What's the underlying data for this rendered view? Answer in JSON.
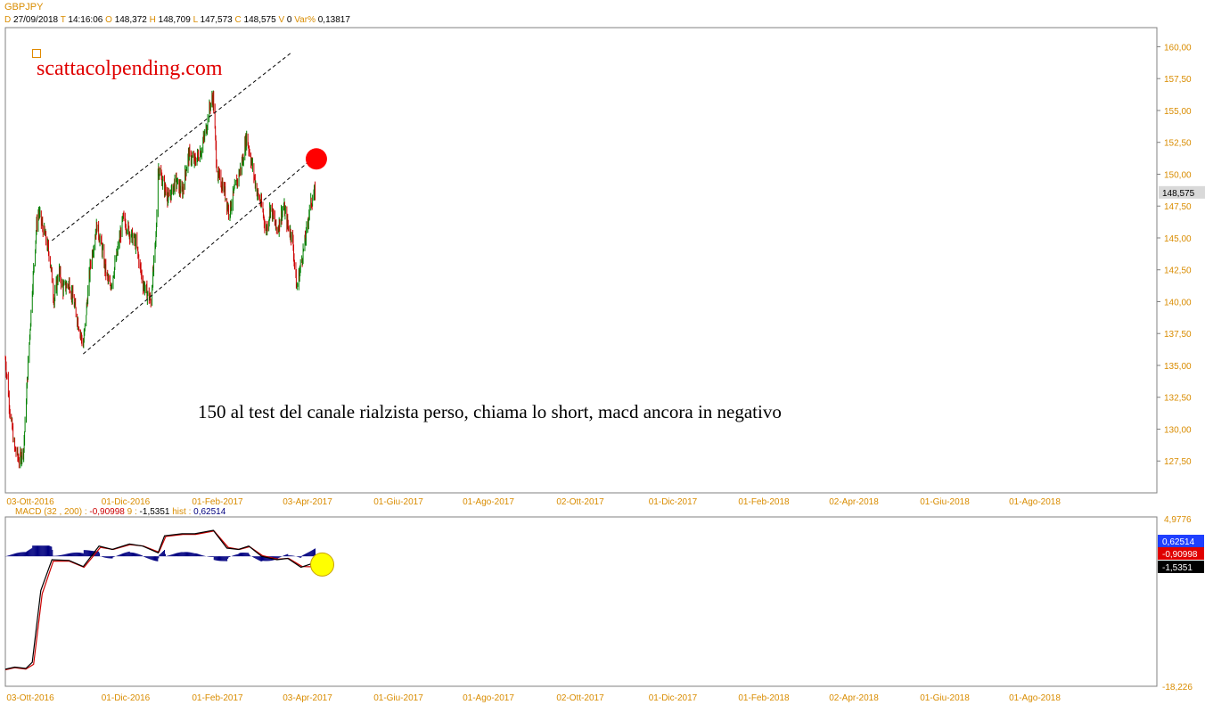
{
  "header": {
    "symbol": "GBPJPY",
    "date_label": "D",
    "date": "27/09/2018",
    "time_label": "T",
    "time": "14:16:06",
    "open_label": "O",
    "open": "148,372",
    "high_label": "H",
    "high": "148,709",
    "low_label": "L",
    "low": "147,573",
    "close_label": "C",
    "close": "148,575",
    "volume_label": "V",
    "volume": "0",
    "var_label": "Var%",
    "var": "0,13817"
  },
  "brand": "scattacolpending.com",
  "annotation": "150 al test del canale rialzista perso, chiama lo short, macd ancora in negativo",
  "macd_header": {
    "name": "MACD",
    "params": "(32 , 200) :",
    "macd_value": "-0,90998",
    "signal_period": "9",
    "signal_sep": ":",
    "signal_value": "-1,5351",
    "hist_label": "hist :",
    "hist_value": "0,62514"
  },
  "colors": {
    "up": "#008000",
    "down": "#cc0000",
    "axis_label": "#d98c00",
    "macd_line": "#000000",
    "signal_line": "#cc0000",
    "hist": "#000080",
    "target_circle": "#ff0000",
    "macd_circle": "#ffff00"
  },
  "chart_data": [
    {
      "type": "candlestick",
      "title": "GBPJPY",
      "ylim": [
        125.0,
        161.5
      ],
      "ytick_labels": [
        "160,00",
        "157,50",
        "155,00",
        "152,50",
        "150,00",
        "147,50",
        "145,00",
        "142,50",
        "140,00",
        "137,50",
        "135,00",
        "132,50",
        "130,00",
        "127,50"
      ],
      "yticks": [
        160,
        157.5,
        155,
        152.5,
        150,
        147.5,
        145,
        142.5,
        140,
        137.5,
        135,
        132.5,
        130,
        127.5
      ],
      "x_dates": [
        "03-Ott-2016",
        "01-Dic-2016",
        "01-Feb-2017",
        "03-Apr-2017",
        "01-Giu-2017",
        "01-Ago-2017",
        "02-Ott-2017",
        "01-Dic-2017",
        "01-Feb-2018",
        "02-Apr-2018",
        "01-Giu-2018",
        "01-Ago-2018"
      ],
      "last_price_label": "148,575",
      "last_price": 148.575,
      "price_path": [
        [
          "2016-10-03",
          135.5
        ],
        [
          "2016-10-15",
          131.0
        ],
        [
          "2016-10-25",
          128.5
        ],
        [
          "2016-11-05",
          127.5
        ],
        [
          "2016-11-15",
          128.5
        ],
        [
          "2016-11-25",
          135.0
        ],
        [
          "2016-12-05",
          141.0
        ],
        [
          "2016-12-15",
          146.0
        ],
        [
          "2016-12-20",
          147.0
        ],
        [
          "2017-01-05",
          145.0
        ],
        [
          "2017-01-15",
          143.5
        ],
        [
          "2017-01-25",
          140.0
        ],
        [
          "2017-02-05",
          142.5
        ],
        [
          "2017-02-15",
          141.0
        ],
        [
          "2017-03-01",
          141.5
        ],
        [
          "2017-03-15",
          139.5
        ],
        [
          "2017-04-03",
          136.5
        ],
        [
          "2017-04-20",
          143.0
        ],
        [
          "2017-05-05",
          146.0
        ],
        [
          "2017-05-15",
          144.5
        ],
        [
          "2017-05-25",
          142.5
        ],
        [
          "2017-06-05",
          141.0
        ],
        [
          "2017-06-20",
          143.5
        ],
        [
          "2017-07-05",
          146.5
        ],
        [
          "2017-07-20",
          145.5
        ],
        [
          "2017-08-05",
          144.5
        ],
        [
          "2017-08-20",
          141.5
        ],
        [
          "2017-09-08",
          140.0
        ],
        [
          "2017-09-20",
          145.0
        ],
        [
          "2017-09-25",
          150.5
        ],
        [
          "2017-10-10",
          149.0
        ],
        [
          "2017-10-20",
          148.0
        ],
        [
          "2017-11-05",
          149.5
        ],
        [
          "2017-11-20",
          148.5
        ],
        [
          "2017-12-05",
          151.5
        ],
        [
          "2017-12-20",
          151.0
        ],
        [
          "2018-01-05",
          152.0
        ],
        [
          "2018-01-15",
          153.5
        ],
        [
          "2018-01-25",
          155.5
        ],
        [
          "2018-02-01",
          156.0
        ],
        [
          "2018-02-10",
          150.0
        ],
        [
          "2018-02-25",
          149.0
        ],
        [
          "2018-03-10",
          147.0
        ],
        [
          "2018-03-25",
          149.0
        ],
        [
          "2018-04-10",
          151.0
        ],
        [
          "2018-04-20",
          153.0
        ],
        [
          "2018-05-01",
          151.0
        ],
        [
          "2018-05-15",
          148.5
        ],
        [
          "2018-05-25",
          147.5
        ],
        [
          "2018-06-05",
          145.5
        ],
        [
          "2018-06-15",
          147.5
        ],
        [
          "2018-06-30",
          145.5
        ],
        [
          "2018-07-15",
          147.5
        ],
        [
          "2018-07-25",
          146.0
        ],
        [
          "2018-08-05",
          145.0
        ],
        [
          "2018-08-15",
          141.0
        ],
        [
          "2018-08-25",
          143.0
        ],
        [
          "2018-09-05",
          145.0
        ],
        [
          "2018-09-15",
          147.5
        ],
        [
          "2018-09-27",
          148.575
        ]
      ],
      "channel": {
        "upper": [
          [
            "2017-01-20",
            144.8
          ],
          [
            "2018-08-01",
            159.5
          ]
        ],
        "lower": [
          [
            "2017-04-03",
            135.9
          ],
          [
            "2018-09-30",
            151.5
          ]
        ]
      },
      "marker": {
        "date": "2018-09-30",
        "value": 151.2
      }
    },
    {
      "type": "line",
      "title": "MACD",
      "ylim": [
        -18.226,
        4.9776
      ],
      "ytick_labels": [
        "4,9776",
        "-18,226"
      ],
      "series": [
        {
          "name": "MACD",
          "values_path": [
            [
              "2016-10-03",
              -16.5
            ],
            [
              "2016-10-25",
              -16.2
            ],
            [
              "2016-11-20",
              -16.4
            ],
            [
              "2016-12-05",
              -15.5
            ],
            [
              "2016-12-25",
              -5.0
            ],
            [
              "2017-01-20",
              -0.5
            ],
            [
              "2017-03-01",
              -0.6
            ],
            [
              "2017-04-03",
              -1.5
            ],
            [
              "2017-05-10",
              1.5
            ],
            [
              "2017-06-10",
              1.0
            ],
            [
              "2017-07-20",
              1.8
            ],
            [
              "2017-08-20",
              1.5
            ],
            [
              "2017-09-25",
              0.5
            ],
            [
              "2017-10-10",
              3.0
            ],
            [
              "2017-11-20",
              3.3
            ],
            [
              "2017-12-20",
              3.3
            ],
            [
              "2018-02-01",
              3.8
            ],
            [
              "2018-03-05",
              1.2
            ],
            [
              "2018-04-01",
              1.0
            ],
            [
              "2018-04-25",
              1.5
            ],
            [
              "2018-05-25",
              0.0
            ],
            [
              "2018-06-30",
              -0.5
            ],
            [
              "2018-07-25",
              -0.3
            ],
            [
              "2018-08-25",
              -1.6
            ],
            [
              "2018-09-27",
              -0.91
            ]
          ]
        },
        {
          "name": "Signal",
          "values_path": [
            [
              "2016-10-03",
              -16.6
            ],
            [
              "2016-10-25",
              -16.3
            ],
            [
              "2016-11-20",
              -16.5
            ],
            [
              "2016-12-08",
              -15.8
            ],
            [
              "2016-12-28",
              -5.5
            ],
            [
              "2017-01-23",
              -0.7
            ],
            [
              "2017-03-01",
              -0.7
            ],
            [
              "2017-04-05",
              -1.6
            ],
            [
              "2017-05-13",
              1.3
            ],
            [
              "2017-06-12",
              1.0
            ],
            [
              "2017-07-22",
              1.7
            ],
            [
              "2017-08-22",
              1.5
            ],
            [
              "2017-09-27",
              0.6
            ],
            [
              "2017-10-13",
              2.9
            ],
            [
              "2017-11-22",
              3.2
            ],
            [
              "2017-12-22",
              3.2
            ],
            [
              "2018-02-03",
              3.7
            ],
            [
              "2018-03-08",
              1.3
            ],
            [
              "2018-04-03",
              1.0
            ],
            [
              "2018-04-27",
              1.4
            ],
            [
              "2018-05-27",
              0.1
            ],
            [
              "2018-07-02",
              -0.4
            ],
            [
              "2018-07-27",
              -0.3
            ],
            [
              "2018-08-28",
              -1.5
            ],
            [
              "2018-09-27",
              -1.5351
            ]
          ]
        }
      ],
      "hist_value": 0.62514,
      "marker": {
        "date": "2018-09-27",
        "value": -1.2
      }
    }
  ]
}
